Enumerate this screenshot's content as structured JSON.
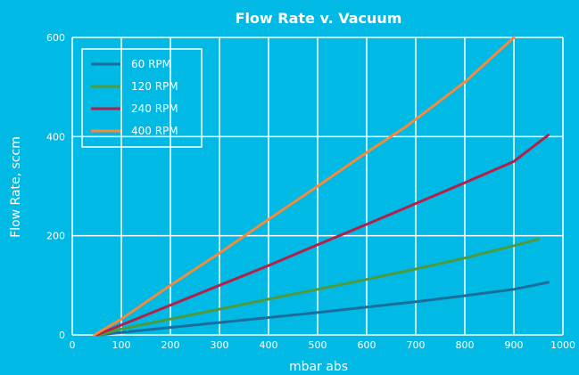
{
  "chart_data": {
    "type": "line",
    "title": "Flow Rate v. Vacuum",
    "xlabel": "mbar abs",
    "ylabel": "Flow Rate, sccm",
    "xlim": [
      0,
      1000
    ],
    "ylim": [
      0,
      600
    ],
    "x_ticks": [
      "0",
      "100",
      "200",
      "300",
      "400",
      "500",
      "600",
      "700",
      "800",
      "900",
      "1000"
    ],
    "y_ticks": [
      "0",
      "200",
      "400",
      "600"
    ],
    "grid": true,
    "legend_position": "top-left",
    "series": [
      {
        "name": "60 RPM",
        "color": "#1a6e9e",
        "x": [
          55,
          100,
          200,
          300,
          400,
          500,
          600,
          700,
          800,
          900,
          970
        ],
        "y": [
          0,
          5,
          15,
          25,
          35,
          45,
          56,
          67,
          79,
          92,
          106
        ]
      },
      {
        "name": "120 RPM",
        "color": "#4e9a3c",
        "x": [
          55,
          100,
          200,
          300,
          400,
          500,
          600,
          700,
          800,
          900,
          950
        ],
        "y": [
          0,
          12,
          32,
          52,
          72,
          92,
          112,
          133,
          155,
          180,
          193
        ]
      },
      {
        "name": "240 RPM",
        "color": "#b3204a",
        "x": [
          50,
          100,
          200,
          300,
          400,
          500,
          600,
          700,
          800,
          900,
          970
        ],
        "y": [
          0,
          20,
          60,
          100,
          140,
          182,
          223,
          265,
          307,
          350,
          403
        ]
      },
      {
        "name": "400 RPM",
        "color": "#f58a3a",
        "x": [
          45,
          100,
          200,
          300,
          400,
          500,
          600,
          680,
          800,
          900
        ],
        "y": [
          0,
          32,
          100,
          165,
          233,
          300,
          368,
          420,
          510,
          600
        ]
      }
    ]
  }
}
